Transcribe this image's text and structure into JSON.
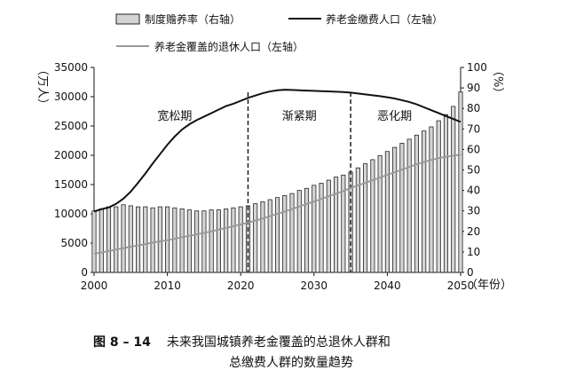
{
  "chart_data": {
    "type": "bar+line",
    "x": [
      2000,
      2001,
      2002,
      2003,
      2004,
      2005,
      2006,
      2007,
      2008,
      2009,
      2010,
      2011,
      2012,
      2013,
      2014,
      2015,
      2016,
      2017,
      2018,
      2019,
      2020,
      2021,
      2022,
      2023,
      2024,
      2025,
      2026,
      2027,
      2028,
      2029,
      2030,
      2031,
      2032,
      2033,
      2034,
      2035,
      2036,
      2037,
      2038,
      2039,
      2040,
      2041,
      2042,
      2043,
      2044,
      2045,
      2046,
      2047,
      2048,
      2049,
      2050
    ],
    "legend": {
      "bar": "制度赡养率（右轴）",
      "contributors": "养老金缴费人口（左轴）",
      "retirees": "养老金覆盖的退休人口（左轴）"
    },
    "series": [
      {
        "name": "制度赡养率（右轴）",
        "axis": "right",
        "type": "bar",
        "values": [
          30,
          31,
          32,
          32,
          33,
          32.5,
          32,
          32,
          31.5,
          32,
          32,
          31.5,
          31,
          30.5,
          30,
          30,
          30.5,
          30.5,
          31,
          31.5,
          32,
          32.5,
          33.5,
          34.5,
          35.5,
          36.5,
          37.5,
          38.5,
          40,
          41,
          42.5,
          43.5,
          45,
          46.5,
          47.5,
          49,
          51,
          53,
          55,
          57,
          59,
          61,
          63,
          65,
          67,
          69,
          71,
          74,
          77,
          81,
          88
        ]
      },
      {
        "name": "养老金缴费人口（左轴）",
        "axis": "left",
        "type": "line",
        "values": [
          10400,
          10800,
          11100,
          11700,
          12600,
          13800,
          15300,
          16900,
          18600,
          20200,
          21800,
          23200,
          24400,
          25300,
          26000,
          26600,
          27200,
          27800,
          28400,
          28800,
          29300,
          29800,
          30200,
          30600,
          30900,
          31100,
          31200,
          31150,
          31100,
          31050,
          31000,
          30950,
          30900,
          30850,
          30800,
          30700,
          30550,
          30400,
          30250,
          30100,
          29900,
          29700,
          29400,
          29100,
          28700,
          28200,
          27700,
          27200,
          26700,
          26200,
          25700
        ]
      },
      {
        "name": "养老金覆盖的退休人口（左轴）",
        "axis": "left",
        "type": "line",
        "values": [
          3200,
          3400,
          3650,
          3900,
          4150,
          4400,
          4600,
          4850,
          5100,
          5300,
          5500,
          5750,
          6000,
          6250,
          6500,
          6750,
          7000,
          7300,
          7600,
          7900,
          8200,
          8500,
          8850,
          9200,
          9600,
          10000,
          10400,
          10800,
          11250,
          11700,
          12100,
          12550,
          13000,
          13450,
          13900,
          14400,
          14850,
          15300,
          15750,
          16200,
          16650,
          17100,
          17550,
          18000,
          18450,
          18850,
          19200,
          19500,
          19750,
          19950,
          20100
        ]
      }
    ],
    "left_axis": {
      "label": "（万人）",
      "min": 0,
      "max": 35000,
      "ticks": [
        "0",
        "5000",
        "10000",
        "15000",
        "20000",
        "25000",
        "30000",
        "35000"
      ]
    },
    "right_axis": {
      "label": "（%）",
      "min": 0,
      "max": 100,
      "ticks": [
        "0",
        "10",
        "20",
        "30",
        "40",
        "50",
        "60",
        "70",
        "80",
        "90",
        "100"
      ]
    },
    "x_axis": {
      "ticks": [
        "2000",
        "2010",
        "2020",
        "2030",
        "2040",
        "2050"
      ],
      "unit": "（年份）"
    },
    "periods": [
      {
        "label": "宽松期",
        "x": 2011
      },
      {
        "label": "渐紧期",
        "x": 2028
      },
      {
        "label": "恶化期",
        "x": 2041
      }
    ],
    "dividers": [
      2021,
      2035
    ],
    "colors": {
      "bar_fill": "#d4d4d4",
      "bar_stroke": "#222222",
      "contrib_line": "#111111",
      "retiree_line": "#9a9a9a"
    }
  },
  "caption": {
    "figure_no": "图 8 – 14",
    "line1": "未来我国城镇养老金覆盖的总退休人群和",
    "line2": "总缴费人群的数量趋势"
  }
}
